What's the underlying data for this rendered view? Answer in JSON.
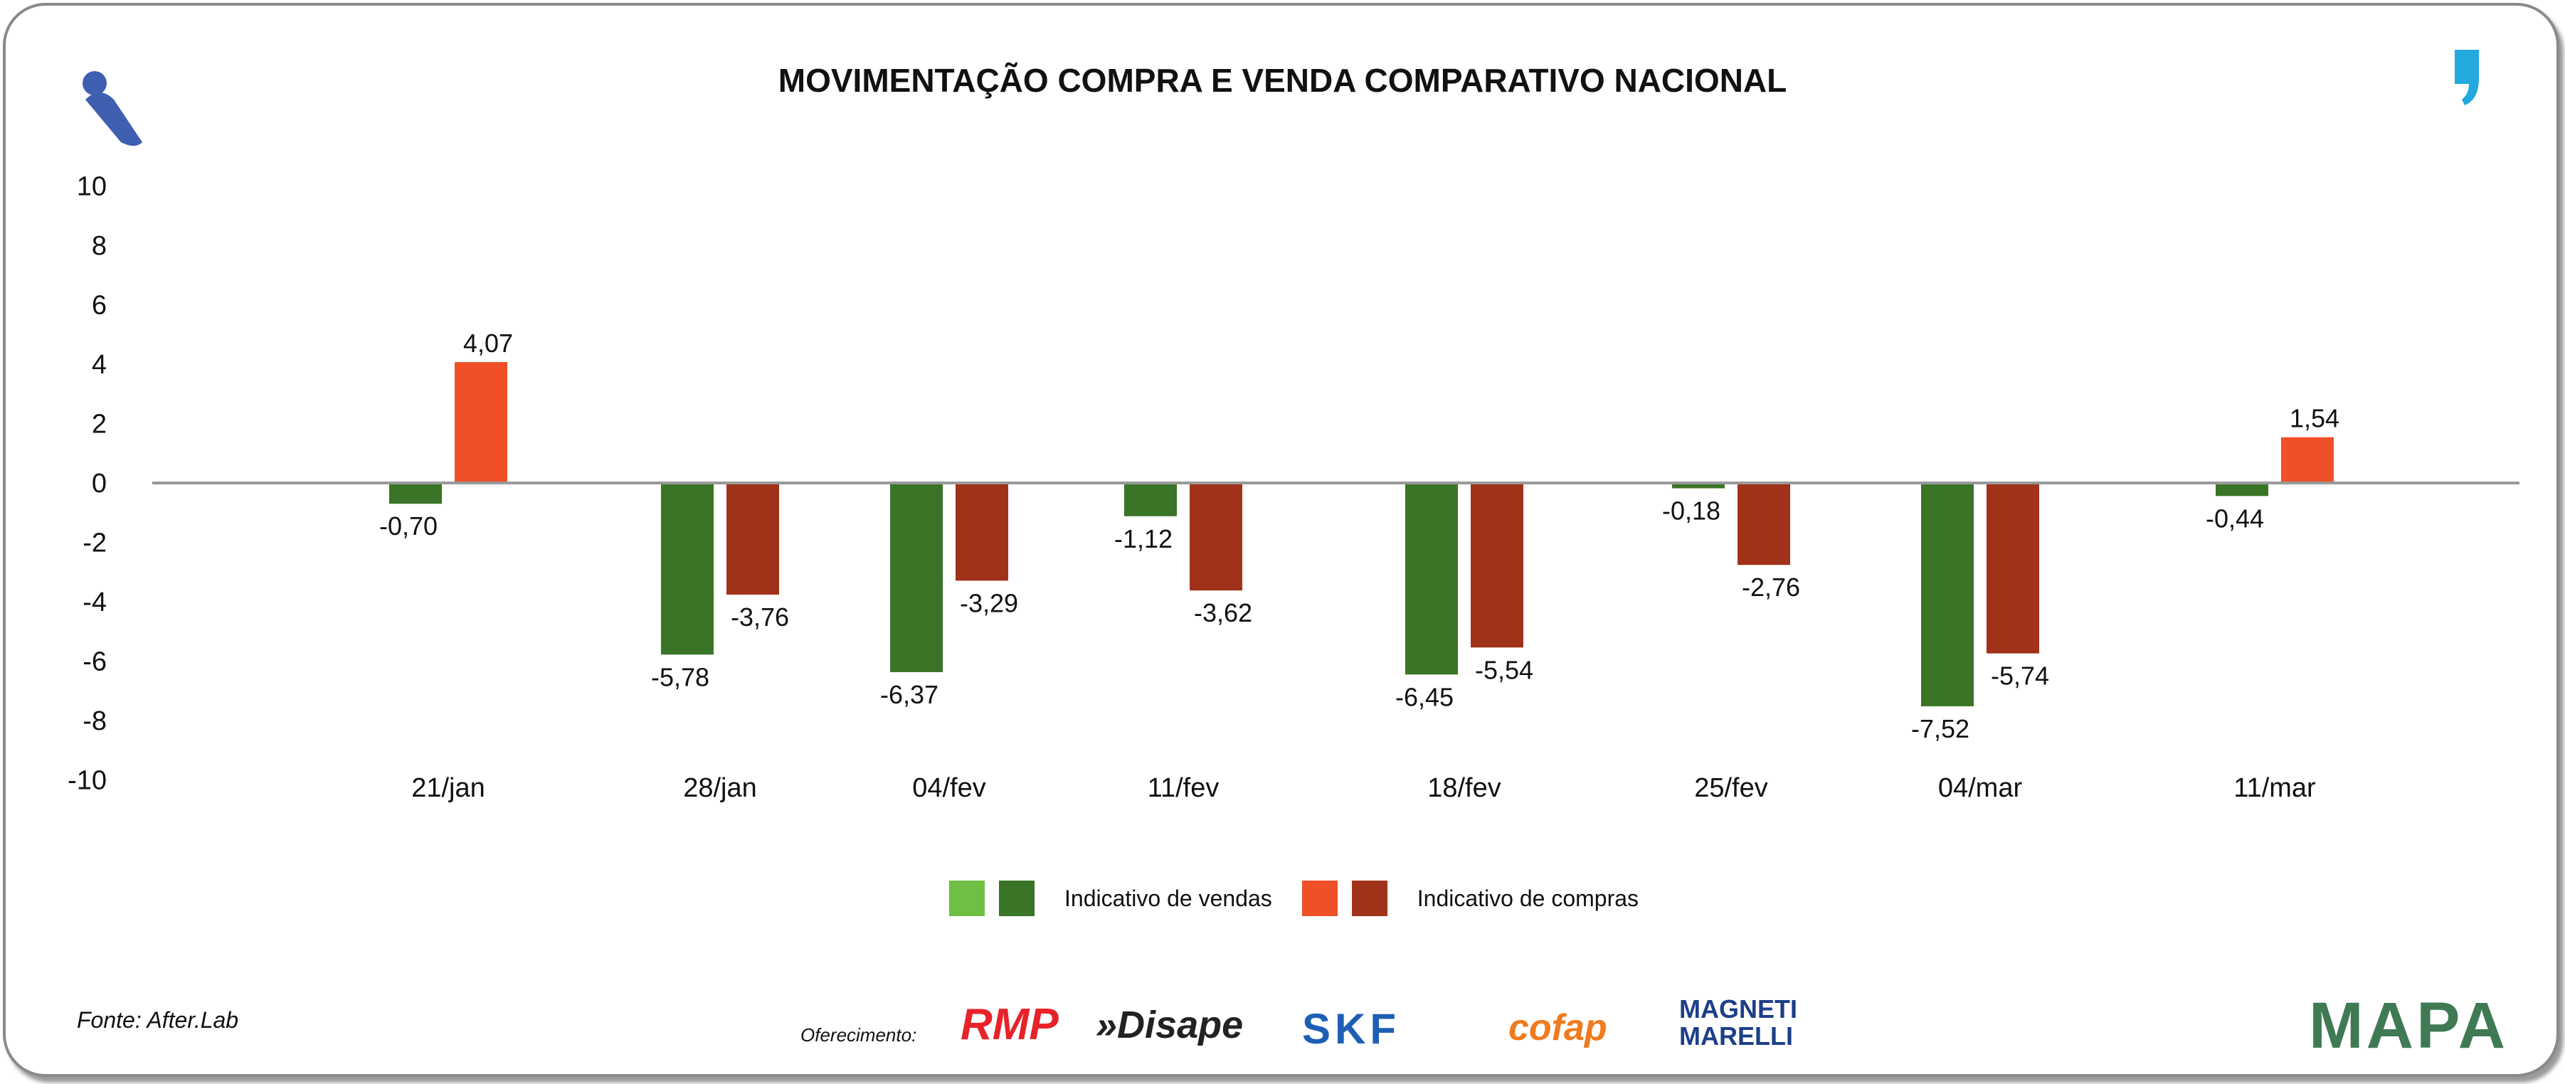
{
  "chart_data": {
    "type": "bar",
    "title": "MOVIMENTAÇÃO COMPRA E VENDA COMPARATIVO NACIONAL",
    "categories": [
      "21/jan",
      "28/jan",
      "04/fev",
      "11/fev",
      "18/fev",
      "25/fev",
      "04/mar",
      "11/mar"
    ],
    "series": [
      {
        "name": "Indicativo de vendas",
        "values": [
          -0.7,
          -5.78,
          -6.37,
          -1.12,
          -6.45,
          -0.18,
          -7.52,
          -0.44
        ],
        "labels": [
          "-0,70",
          "-5,78",
          "-6,37",
          "-1,12",
          "-6,45",
          "-0,18",
          "-7,52",
          "-0,44"
        ],
        "color_positive": "#6fbf44",
        "color_negative": "#3a7426"
      },
      {
        "name": "Indicativo de compras",
        "values": [
          4.07,
          -3.76,
          -3.29,
          -3.62,
          -5.54,
          -2.76,
          -5.74,
          1.54
        ],
        "labels": [
          "4,07",
          "-3,76",
          "-3,29",
          "-3,62",
          "-5,54",
          "-2,76",
          "-5,74",
          "1,54"
        ],
        "color_positive": "#f05027",
        "color_negative": "#a0321a"
      }
    ],
    "ylim": [
      -10,
      10
    ],
    "yticks": [
      10,
      8,
      6,
      4,
      2,
      0,
      -2,
      -4,
      -6,
      -8,
      -10
    ],
    "xlabel": "",
    "ylabel": "",
    "legend": "bottom-center",
    "grid": false
  },
  "footer": {
    "source": "Fonte: After.Lab",
    "sponsor_label": "Oferecimento:",
    "sponsors": [
      "RMP",
      "»Disape",
      "SKF",
      "cofap",
      "MAGNETI MARELLI"
    ],
    "brand": "MAPA"
  }
}
